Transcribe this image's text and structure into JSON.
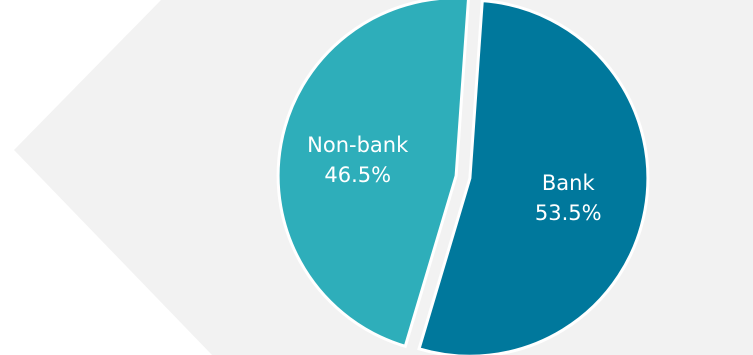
{
  "chart_data": {
    "type": "pie",
    "slices": [
      {
        "label": "Bank",
        "value": 53.5,
        "value_label": "53.5%",
        "color": "#00789C"
      },
      {
        "label": "Non-bank",
        "value": 46.5,
        "value_label": "46.5%",
        "color": "#2EAEBA"
      }
    ],
    "exploded": true,
    "legend": "none",
    "background_shape_color": "#F2F2F2"
  }
}
